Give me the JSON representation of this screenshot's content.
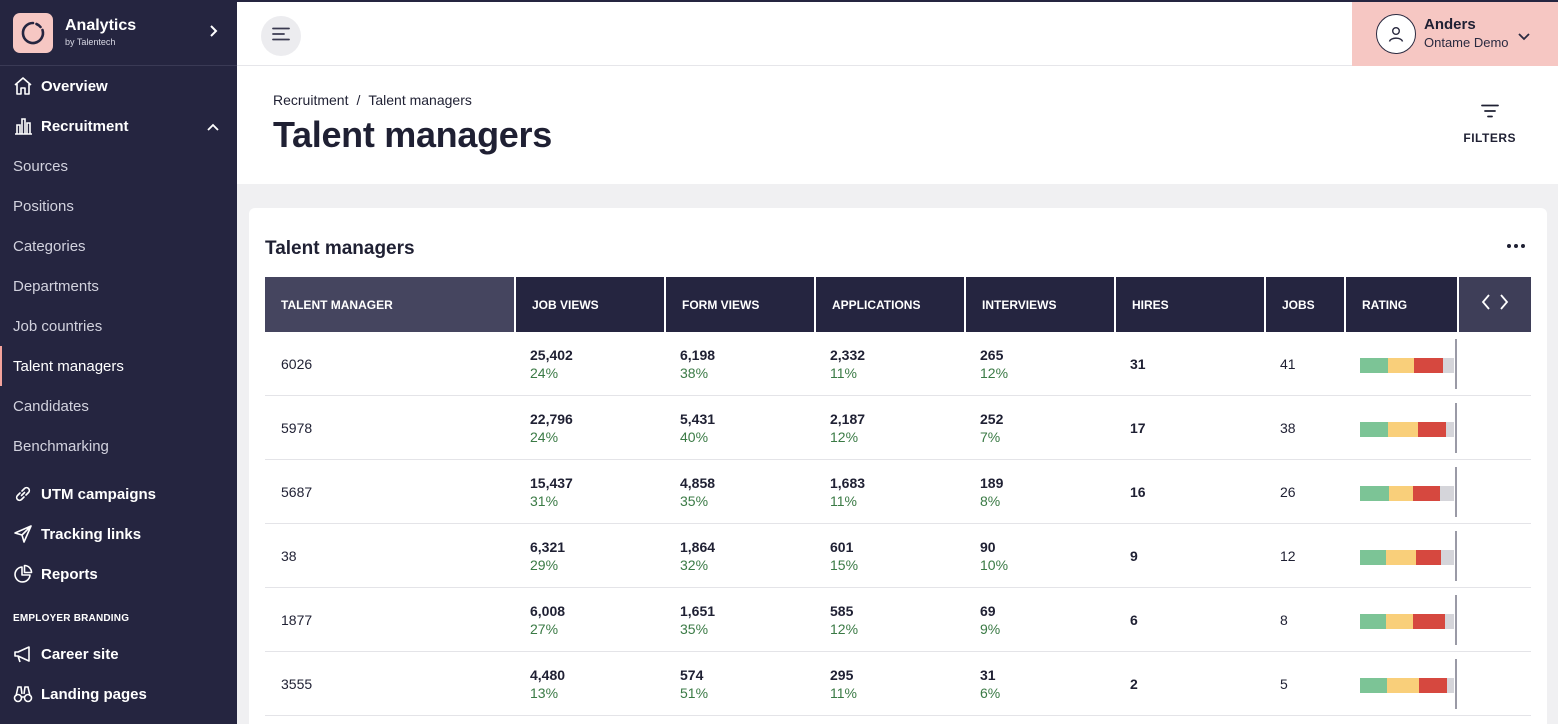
{
  "app": {
    "title": "Analytics",
    "subtitle": "by Talentech"
  },
  "sidebar": {
    "overview": "Overview",
    "recruitment": "Recruitment",
    "sub_items": [
      "Sources",
      "Positions",
      "Categories",
      "Departments",
      "Job countries",
      "Talent managers",
      "Candidates",
      "Benchmarking"
    ],
    "active_sub": "Talent managers",
    "utm": "UTM campaigns",
    "tracking": "Tracking links",
    "reports": "Reports",
    "section_employer": "EMPLOYER BRANDING",
    "career": "Career site",
    "landing": "Landing pages"
  },
  "user": {
    "name": "Anders",
    "org": "Ontame Demo"
  },
  "header": {
    "breadcrumb_parent": "Recruitment",
    "breadcrumb_sep": "/",
    "breadcrumb_current": "Talent managers",
    "title": "Talent managers",
    "filters_label": "FILTERS"
  },
  "card": {
    "title": "Talent managers"
  },
  "table": {
    "headers": [
      "TALENT MANAGER",
      "JOB VIEWS",
      "FORM VIEWS",
      "APPLICATIONS",
      "INTERVIEWS",
      "HIRES",
      "JOBS",
      "RATING"
    ],
    "rows": [
      {
        "manager": "6026",
        "job_views": "25,402",
        "job_views_pct": "24%",
        "form_views": "6,198",
        "form_views_pct": "38%",
        "applications": "2,332",
        "applications_pct": "11%",
        "interviews": "265",
        "interviews_pct": "12%",
        "hires": "31",
        "jobs": "41",
        "rating": [
          0.3,
          0.28,
          0.3,
          0.12
        ]
      },
      {
        "manager": "5978",
        "job_views": "22,796",
        "job_views_pct": "24%",
        "form_views": "5,431",
        "form_views_pct": "40%",
        "applications": "2,187",
        "applications_pct": "12%",
        "interviews": "252",
        "interviews_pct": "7%",
        "hires": "17",
        "jobs": "38",
        "rating": [
          0.3,
          0.32,
          0.3,
          0.08
        ]
      },
      {
        "manager": "5687",
        "job_views": "15,437",
        "job_views_pct": "31%",
        "form_views": "4,858",
        "form_views_pct": "35%",
        "applications": "1,683",
        "applications_pct": "11%",
        "interviews": "189",
        "interviews_pct": "8%",
        "hires": "16",
        "jobs": "26",
        "rating": [
          0.31,
          0.26,
          0.28,
          0.15
        ]
      },
      {
        "manager": "38",
        "job_views": "6,321",
        "job_views_pct": "29%",
        "form_views": "1,864",
        "form_views_pct": "32%",
        "applications": "601",
        "applications_pct": "15%",
        "interviews": "90",
        "interviews_pct": "10%",
        "hires": "9",
        "jobs": "12",
        "rating": [
          0.28,
          0.32,
          0.26,
          0.14
        ]
      },
      {
        "manager": "1877",
        "job_views": "6,008",
        "job_views_pct": "27%",
        "form_views": "1,651",
        "form_views_pct": "35%",
        "applications": "585",
        "applications_pct": "12%",
        "interviews": "69",
        "interviews_pct": "9%",
        "hires": "6",
        "jobs": "8",
        "rating": [
          0.28,
          0.28,
          0.34,
          0.1
        ]
      },
      {
        "manager": "3555",
        "job_views": "4,480",
        "job_views_pct": "13%",
        "form_views": "574",
        "form_views_pct": "51%",
        "applications": "295",
        "applications_pct": "11%",
        "interviews": "31",
        "interviews_pct": "6%",
        "hires": "2",
        "jobs": "5",
        "rating": [
          0.29,
          0.34,
          0.29,
          0.08
        ]
      }
    ]
  },
  "colors": {
    "sidebar_bg": "#252540",
    "accent_pink": "#f6c7c3",
    "pct_green": "#3a7a45",
    "rating_green": "#7cc496",
    "rating_yellow": "#f9cf7a",
    "rating_red": "#d6483f",
    "rating_gray": "#d5d5da"
  },
  "icons": {
    "brand": "brand-ring-icon",
    "overview": "home-icon",
    "recruitment": "bar-chart-icon",
    "utm": "link-icon",
    "tracking": "send-icon",
    "reports": "pie-chart-icon",
    "career": "megaphone-icon",
    "landing": "binoculars-icon"
  }
}
